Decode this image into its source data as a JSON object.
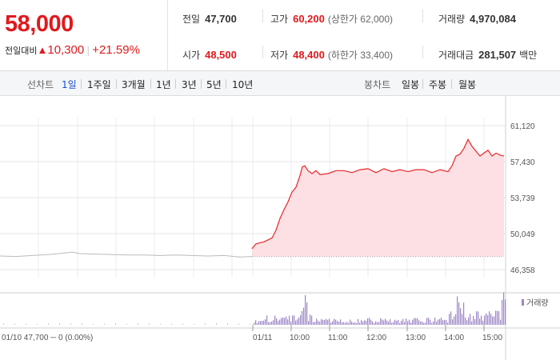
{
  "summary": {
    "price": "58,000",
    "change_label": "전일대비",
    "change_arrow": "▲",
    "change_value": "10,300",
    "change_pct": "+21.59%",
    "prev_close_label": "전일",
    "prev_close": "47,700",
    "high_label": "고가",
    "high": "60,200",
    "upper_limit": "(상한가 62,000)",
    "volume_label": "거래량",
    "volume": "4,970,084",
    "open_label": "시가",
    "open": "48,500",
    "low_label": "저가",
    "low": "48,400",
    "lower_limit": "(하한가 33,400)",
    "turnover_label": "거래대금",
    "turnover": "281,507",
    "turnover_unit": "백만",
    "colors": {
      "up": "#e0191d",
      "tab_active": "#1a4fd6"
    }
  },
  "tabs": {
    "line_label": "선차트",
    "line_tabs": [
      "1일",
      "1주일",
      "3개월",
      "1년",
      "3년",
      "5년",
      "10년"
    ],
    "line_active": "1일",
    "candle_label": "봉차트",
    "candle_tabs": [
      "일봉",
      "주봉",
      "월봉"
    ]
  },
  "chart_data": {
    "type": "line",
    "y_ticks": [
      "61,120",
      "57,430",
      "53,739",
      "50,049",
      "46,358"
    ],
    "ylim": [
      46358,
      61120
    ],
    "x_ticks": [
      "01/11",
      "10:00",
      "11:00",
      "12:00",
      "13:00",
      "14:00",
      "15:00"
    ],
    "prev_day_label": "01/10  47,700 ─ 0 (0.00%)",
    "volume_legend": "거래량",
    "grid": true,
    "series": [
      {
        "day": "01/10",
        "color": "#bbbbbb",
        "x": [
          0,
          20,
          40,
          60,
          80,
          90,
          100,
          120,
          140,
          160,
          180,
          200,
          220,
          240,
          260,
          280,
          300,
          315
        ],
        "values": [
          47750,
          47700,
          47800,
          47900,
          48050,
          48150,
          48000,
          47950,
          47900,
          47850,
          47850,
          47800,
          47850,
          47800,
          47750,
          47800,
          47650,
          47700
        ]
      },
      {
        "day": "01/11",
        "color": "#e8262b",
        "fill": "#fce0e3",
        "x": [
          315,
          320,
          330,
          340,
          345,
          350,
          355,
          360,
          365,
          370,
          375,
          378,
          381,
          385,
          390,
          395,
          400,
          410,
          420,
          430,
          440,
          450,
          460,
          470,
          480,
          490,
          500,
          510,
          520,
          530,
          540,
          550,
          560,
          565,
          570,
          575,
          580,
          585,
          590,
          595,
          600,
          605,
          610,
          615,
          620,
          625,
          630
        ],
        "values": [
          48500,
          49000,
          49200,
          49600,
          50400,
          51600,
          52500,
          53300,
          54300,
          54800,
          56000,
          56900,
          57000,
          56500,
          56200,
          56500,
          56100,
          56200,
          56500,
          56500,
          56300,
          56600,
          56700,
          56300,
          56700,
          56400,
          56600,
          56400,
          56600,
          56600,
          56300,
          56600,
          56400,
          57000,
          58000,
          58200,
          58800,
          59700,
          59000,
          58500,
          58000,
          58300,
          58600,
          58000,
          58300,
          58100,
          58000
        ]
      }
    ],
    "baseline": 47700
  }
}
